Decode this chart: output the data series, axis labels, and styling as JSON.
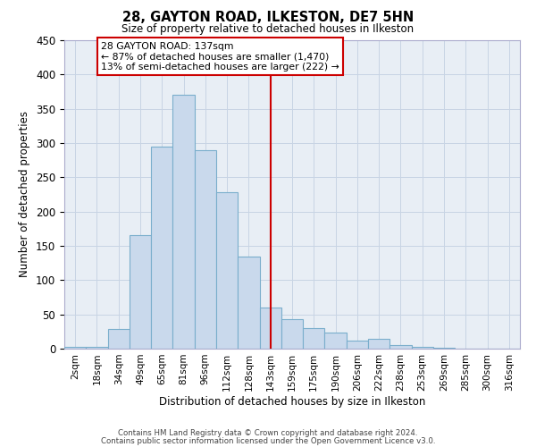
{
  "title": "28, GAYTON ROAD, ILKESTON, DE7 5HN",
  "subtitle": "Size of property relative to detached houses in Ilkeston",
  "xlabel": "Distribution of detached houses by size in Ilkeston",
  "ylabel": "Number of detached properties",
  "bar_labels": [
    "2sqm",
    "18sqm",
    "34sqm",
    "49sqm",
    "65sqm",
    "81sqm",
    "96sqm",
    "112sqm",
    "128sqm",
    "143sqm",
    "159sqm",
    "175sqm",
    "190sqm",
    "206sqm",
    "222sqm",
    "238sqm",
    "253sqm",
    "269sqm",
    "285sqm",
    "300sqm",
    "316sqm"
  ],
  "bar_values": [
    2,
    3,
    29,
    166,
    295,
    370,
    290,
    228,
    135,
    60,
    43,
    30,
    24,
    12,
    14,
    5,
    2,
    1,
    0,
    0,
    0
  ],
  "bar_color": "#c9d9ec",
  "bar_edge_color": "#7aaecc",
  "vline_x": 9.0,
  "vline_color": "#cc0000",
  "annotation_title": "28 GAYTON ROAD: 137sqm",
  "annotation_line1": "← 87% of detached houses are smaller (1,470)",
  "annotation_line2": "13% of semi-detached houses are larger (222) →",
  "annotation_box_color": "#ffffff",
  "annotation_box_edge": "#cc0000",
  "ylim": [
    0,
    450
  ],
  "yticks": [
    0,
    50,
    100,
    150,
    200,
    250,
    300,
    350,
    400,
    450
  ],
  "footer1": "Contains HM Land Registry data © Crown copyright and database right 2024.",
  "footer2": "Contains public sector information licensed under the Open Government Licence v3.0.",
  "bg_color": "#ffffff",
  "plot_bg_color": "#e8eef5",
  "grid_color": "#c8d4e4"
}
